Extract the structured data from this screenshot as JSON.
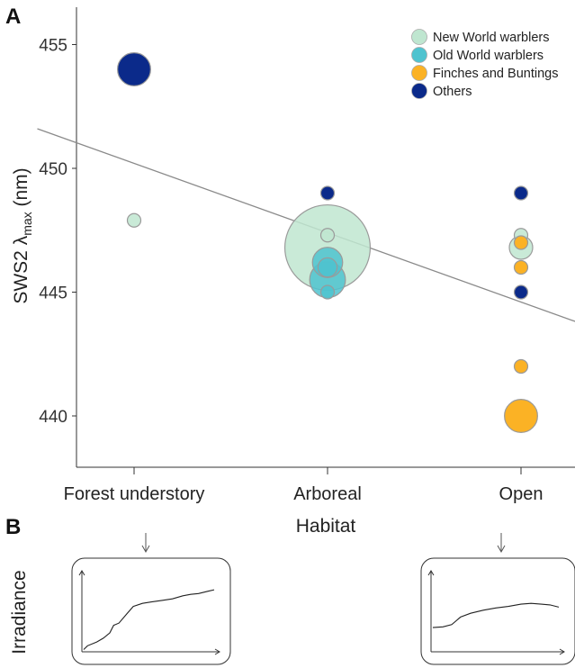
{
  "panel_a_label": "A",
  "panel_b_label": "B",
  "irradiance_label": "Irradiance",
  "colors": {
    "new_world": "#bfe6d0",
    "old_world": "#4fc3cf",
    "finches": "#fbb225",
    "others": "#0b2a8a"
  },
  "chart_data": {
    "type": "scatter",
    "xlabel": "Habitat",
    "ylabel": "SWS2 λmax (nm)",
    "categories": [
      "Forest understory",
      "Arboreal",
      "Open"
    ],
    "ylim": [
      438,
      456.5
    ],
    "yticks": [
      440,
      445,
      450,
      455
    ],
    "trendline": {
      "start": [
        -0.5,
        451.6
      ],
      "end": [
        2.5,
        443.2
      ]
    },
    "legend": [
      {
        "name": "New World warblers",
        "color_key": "new_world"
      },
      {
        "name": "Old World warblers",
        "color_key": "old_world"
      },
      {
        "name": "Finches and Buntings",
        "color_key": "finches"
      },
      {
        "name": "Others",
        "color_key": "others"
      }
    ],
    "series": [
      {
        "name": "New World warblers",
        "color_key": "new_world",
        "points": [
          {
            "x": "Forest understory",
            "y": 447.9,
            "size": 1
          },
          {
            "x": "Arboreal",
            "y": 446.8,
            "size": 40
          },
          {
            "x": "Arboreal",
            "y": 447.3,
            "size": 1
          },
          {
            "x": "Open",
            "y": 446.8,
            "size": 3
          },
          {
            "x": "Open",
            "y": 447.3,
            "size": 1
          }
        ]
      },
      {
        "name": "Old World warblers",
        "color_key": "old_world",
        "points": [
          {
            "x": "Arboreal",
            "y": 446.2,
            "size": 5
          },
          {
            "x": "Arboreal",
            "y": 445.5,
            "size": 7
          },
          {
            "x": "Arboreal",
            "y": 446.0,
            "size": 2
          },
          {
            "x": "Arboreal",
            "y": 445.0,
            "size": 1
          }
        ]
      },
      {
        "name": "Finches and Buntings",
        "color_key": "finches",
        "points": [
          {
            "x": "Open",
            "y": 447.0,
            "size": 1
          },
          {
            "x": "Open",
            "y": 446.0,
            "size": 1
          },
          {
            "x": "Open",
            "y": 442.0,
            "size": 1
          },
          {
            "x": "Open",
            "y": 440.0,
            "size": 6
          }
        ]
      },
      {
        "name": "Others",
        "color_key": "others",
        "points": [
          {
            "x": "Forest understory",
            "y": 454.0,
            "size": 6
          },
          {
            "x": "Arboreal",
            "y": 449.0,
            "size": 1
          },
          {
            "x": "Open",
            "y": 449.0,
            "size": 1
          },
          {
            "x": "Open",
            "y": 445.0,
            "size": 1
          }
        ]
      }
    ]
  },
  "irradiance_panels": [
    {
      "habitat": "Forest understory",
      "curve": [
        [
          0,
          0.03
        ],
        [
          0.03,
          0.08
        ],
        [
          0.1,
          0.13
        ],
        [
          0.15,
          0.18
        ],
        [
          0.2,
          0.25
        ],
        [
          0.23,
          0.35
        ],
        [
          0.27,
          0.38
        ],
        [
          0.33,
          0.5
        ],
        [
          0.38,
          0.6
        ],
        [
          0.45,
          0.64
        ],
        [
          0.52,
          0.66
        ],
        [
          0.6,
          0.68
        ],
        [
          0.68,
          0.7
        ],
        [
          0.76,
          0.74
        ],
        [
          0.82,
          0.76
        ],
        [
          0.88,
          0.77
        ],
        [
          0.95,
          0.8
        ],
        [
          1,
          0.82
        ]
      ]
    },
    {
      "habitat": "Open",
      "curve": [
        [
          0,
          0.32
        ],
        [
          0.08,
          0.33
        ],
        [
          0.15,
          0.36
        ],
        [
          0.22,
          0.46
        ],
        [
          0.3,
          0.51
        ],
        [
          0.4,
          0.55
        ],
        [
          0.5,
          0.58
        ],
        [
          0.6,
          0.6
        ],
        [
          0.7,
          0.63
        ],
        [
          0.78,
          0.64
        ],
        [
          0.86,
          0.63
        ],
        [
          0.93,
          0.62
        ],
        [
          1,
          0.59
        ]
      ]
    }
  ]
}
